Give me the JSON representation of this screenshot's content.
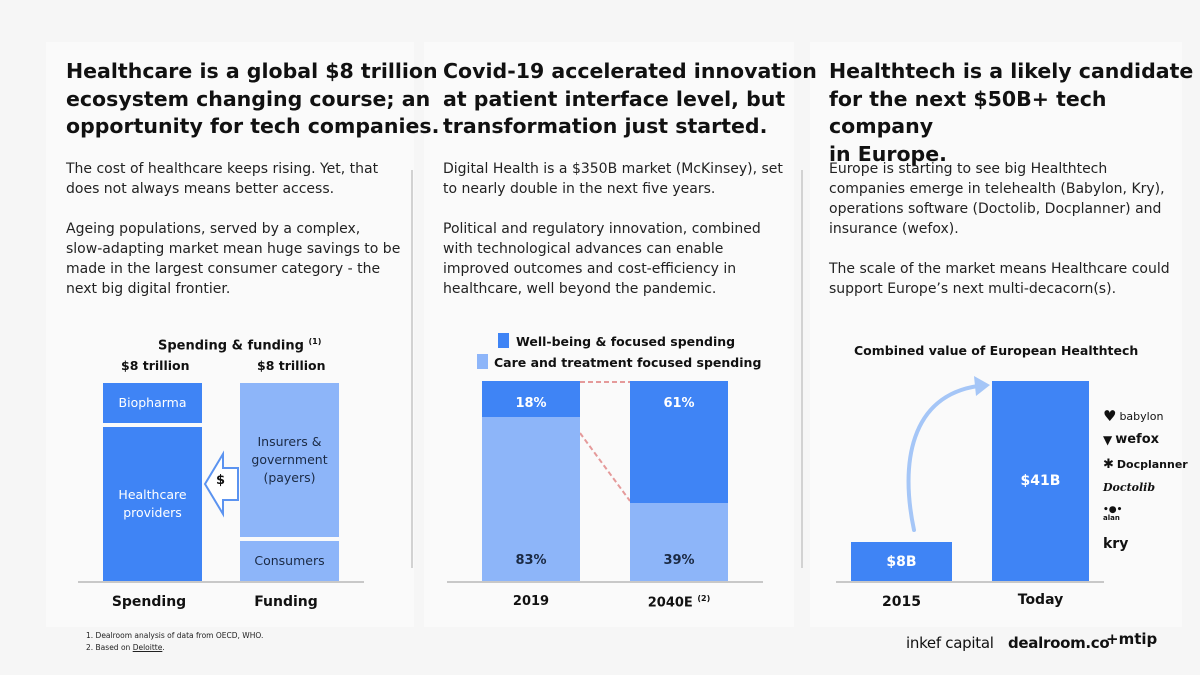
{
  "columns": [
    {
      "heading": "Healthcare is a global $8 trillion\necosystem changing course; an\nopportunity for tech companies.",
      "p1": "The cost of healthcare keeps rising. Yet, that\ndoes not always means better access.",
      "p2": "Ageing populations, served by a complex,\nslow-adapting market mean huge savings to be\nmade in the largest consumer category - the\nnext big digital frontier."
    },
    {
      "heading": "Covid-19 accelerated innovation\nat patient interface level, but\ntransformation just started.",
      "p1": "Digital Health is a $350B market (McKinsey), set\nto nearly double in the next five years.",
      "p2": "Political and regulatory innovation, combined\nwith technological advances can enable\nimproved outcomes and cost-efficiency in\nhealthcare, well beyond the pandemic."
    },
    {
      "heading": "Healthtech is a likely candidate\nfor the next $50B+ tech company\nin Europe.",
      "p1": "Europe is starting to see big Healthtech\ncompanies emerge in  telehealth (Babylon, Kry),\noperations software (Doctolib, Docplanner) and\ninsurance (wefox).",
      "p2": "The scale of the market means Healthcare could\nsupport Europe’s next multi-decacorn(s)."
    }
  ],
  "chart1": {
    "title": "Spending & funding",
    "title_sup": "(1)",
    "spending_total": "$8 trillion",
    "funding_total": "$8 trillion",
    "spending_blocks": [
      "Biopharma",
      "Healthcare\nproviders"
    ],
    "funding_blocks": [
      "Insurers &\ngovernment\n(payers)",
      "Consumers"
    ],
    "flow_label": "$",
    "categories": [
      "Spending",
      "Funding"
    ]
  },
  "chart2": {
    "legend": [
      "Well-being & focused spending",
      "Care and treatment focused spending"
    ],
    "categories": [
      "2019",
      "2040E"
    ],
    "category_sup": [
      "",
      "(2)"
    ],
    "wellbeing": [
      18,
      61
    ],
    "care": [
      83,
      39
    ],
    "wellbeing_labels": [
      "18%",
      "61%"
    ],
    "care_labels": [
      "83%",
      "39%"
    ]
  },
  "chart3": {
    "title": "Combined value of European Healthtech",
    "categories": [
      "2015",
      "Today"
    ],
    "values": [
      8,
      41
    ],
    "value_labels": [
      "$8B",
      "$41B"
    ],
    "companies": [
      "babylon",
      "wefox",
      "Docplanner",
      "Doctolib",
      "alan",
      "kry"
    ]
  },
  "footnotes": [
    "1. Dealroom analysis of data from OECD, WHO.",
    "2. Based on ",
    "Deloitte",
    "."
  ],
  "logos": [
    "inkef capital",
    "dealroom.co",
    "+mtip"
  ],
  "colors": {
    "dark_blue": "#3f84f5",
    "light_blue": "#8db5f9",
    "accent_dash": "#e59a9a",
    "arrow": "#a5c6f7"
  },
  "chart_data": [
    {
      "type": "bar",
      "categories": [
        "2019",
        "2040E"
      ],
      "series": [
        {
          "name": "Well-being & focused spending",
          "values": [
            18,
            61
          ]
        },
        {
          "name": "Care and treatment focused spending",
          "values": [
            83,
            39
          ]
        }
      ]
    },
    {
      "type": "bar",
      "title": "Combined value of European Healthtech",
      "categories": [
        "2015",
        "Today"
      ],
      "values": [
        8,
        41
      ]
    }
  ]
}
